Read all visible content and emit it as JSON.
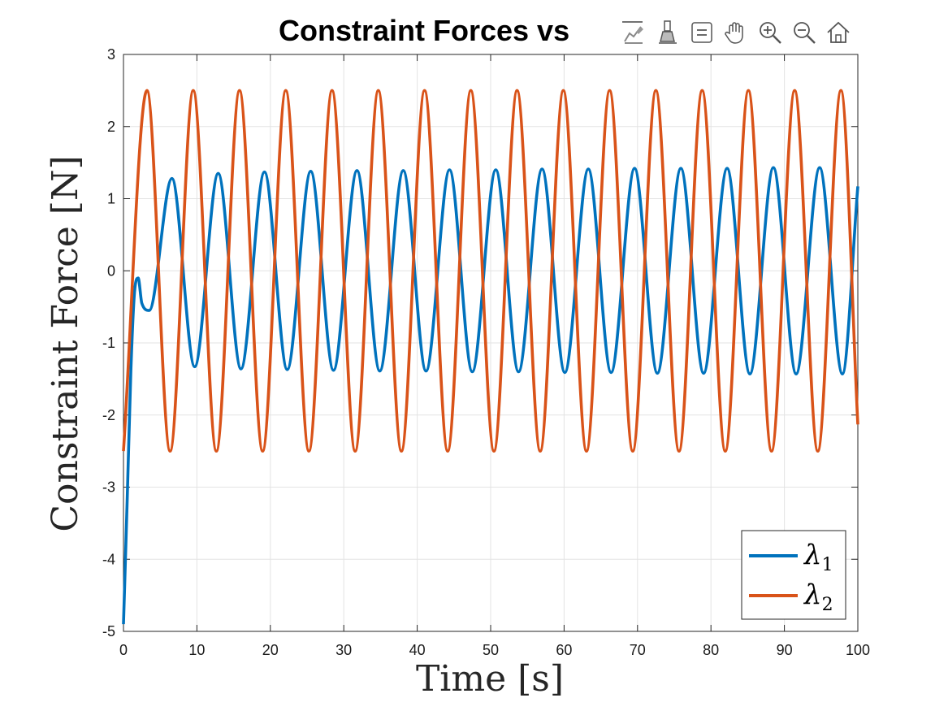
{
  "toolbar": {
    "buttons": [
      {
        "name": "data-tips-icon"
      },
      {
        "name": "brush-icon"
      },
      {
        "name": "legend-toggle-icon"
      },
      {
        "name": "pan-hand-icon"
      },
      {
        "name": "zoom-in-icon"
      },
      {
        "name": "zoom-out-icon"
      },
      {
        "name": "restore-view-home-icon"
      }
    ]
  },
  "chart_data": {
    "type": "line",
    "title": "Constraint Forces vs",
    "xlabel": "Time [s]",
    "ylabel": "Constraint Force [N]",
    "xlim": [
      0,
      100
    ],
    "ylim": [
      -5,
      3
    ],
    "xticks": [
      "0",
      "10",
      "20",
      "30",
      "40",
      "50",
      "60",
      "70",
      "80",
      "90",
      "100"
    ],
    "yticks": [
      "3",
      "2",
      "1",
      "0",
      "-1",
      "-2",
      "-3",
      "-4",
      "-5"
    ],
    "grid": true,
    "legend_position": "bottom-right",
    "series": [
      {
        "name": "λ1",
        "legend_symbol": "λ",
        "legend_subscript": "1",
        "color": "#0072BD",
        "x": [
          0,
          0.5,
          1,
          1.5,
          2,
          2.5,
          3.5,
          6.6,
          9.7,
          12.9,
          16.0,
          19.2,
          22.3,
          25.5,
          28.6,
          31.8,
          34.9,
          38.1,
          41.2,
          44.4,
          47.5,
          50.7,
          53.8,
          57.0,
          60.1,
          63.3,
          66.4,
          69.6,
          72.7,
          75.9,
          79.0,
          82.2,
          85.3,
          88.5,
          91.6,
          94.8,
          97.9,
          100
        ],
        "values": [
          -4.9,
          -3.2,
          -1.4,
          -0.3,
          -0.1,
          -0.45,
          -0.55,
          1.28,
          -1.33,
          1.35,
          -1.36,
          1.37,
          -1.37,
          1.38,
          -1.38,
          1.39,
          -1.39,
          1.39,
          -1.39,
          1.4,
          -1.4,
          1.4,
          -1.4,
          1.41,
          -1.41,
          1.41,
          -1.41,
          1.42,
          -1.42,
          1.42,
          -1.42,
          1.42,
          -1.43,
          1.43,
          -1.43,
          1.43,
          -1.43,
          1.17
        ]
      },
      {
        "name": "λ2",
        "legend_symbol": "λ",
        "legend_subscript": "2",
        "color": "#D95319",
        "x": [
          0,
          3.2,
          6.35,
          9.5,
          12.65,
          15.8,
          18.95,
          22.1,
          25.25,
          28.4,
          31.55,
          34.7,
          37.85,
          41.0,
          44.15,
          47.3,
          50.45,
          53.6,
          56.75,
          59.9,
          63.05,
          66.2,
          69.35,
          72.5,
          75.65,
          78.8,
          81.95,
          85.1,
          88.25,
          91.4,
          94.55,
          97.7,
          100
        ],
        "values": [
          -2.5,
          2.5,
          -2.5,
          2.5,
          -2.5,
          2.5,
          -2.5,
          2.5,
          -2.5,
          2.5,
          -2.5,
          2.5,
          -2.5,
          2.5,
          -2.5,
          2.5,
          -2.5,
          2.5,
          -2.5,
          2.5,
          -2.5,
          2.5,
          -2.5,
          2.5,
          -2.5,
          2.5,
          -2.5,
          2.5,
          -2.5,
          2.5,
          -2.5,
          2.5,
          -2.13
        ]
      }
    ]
  }
}
